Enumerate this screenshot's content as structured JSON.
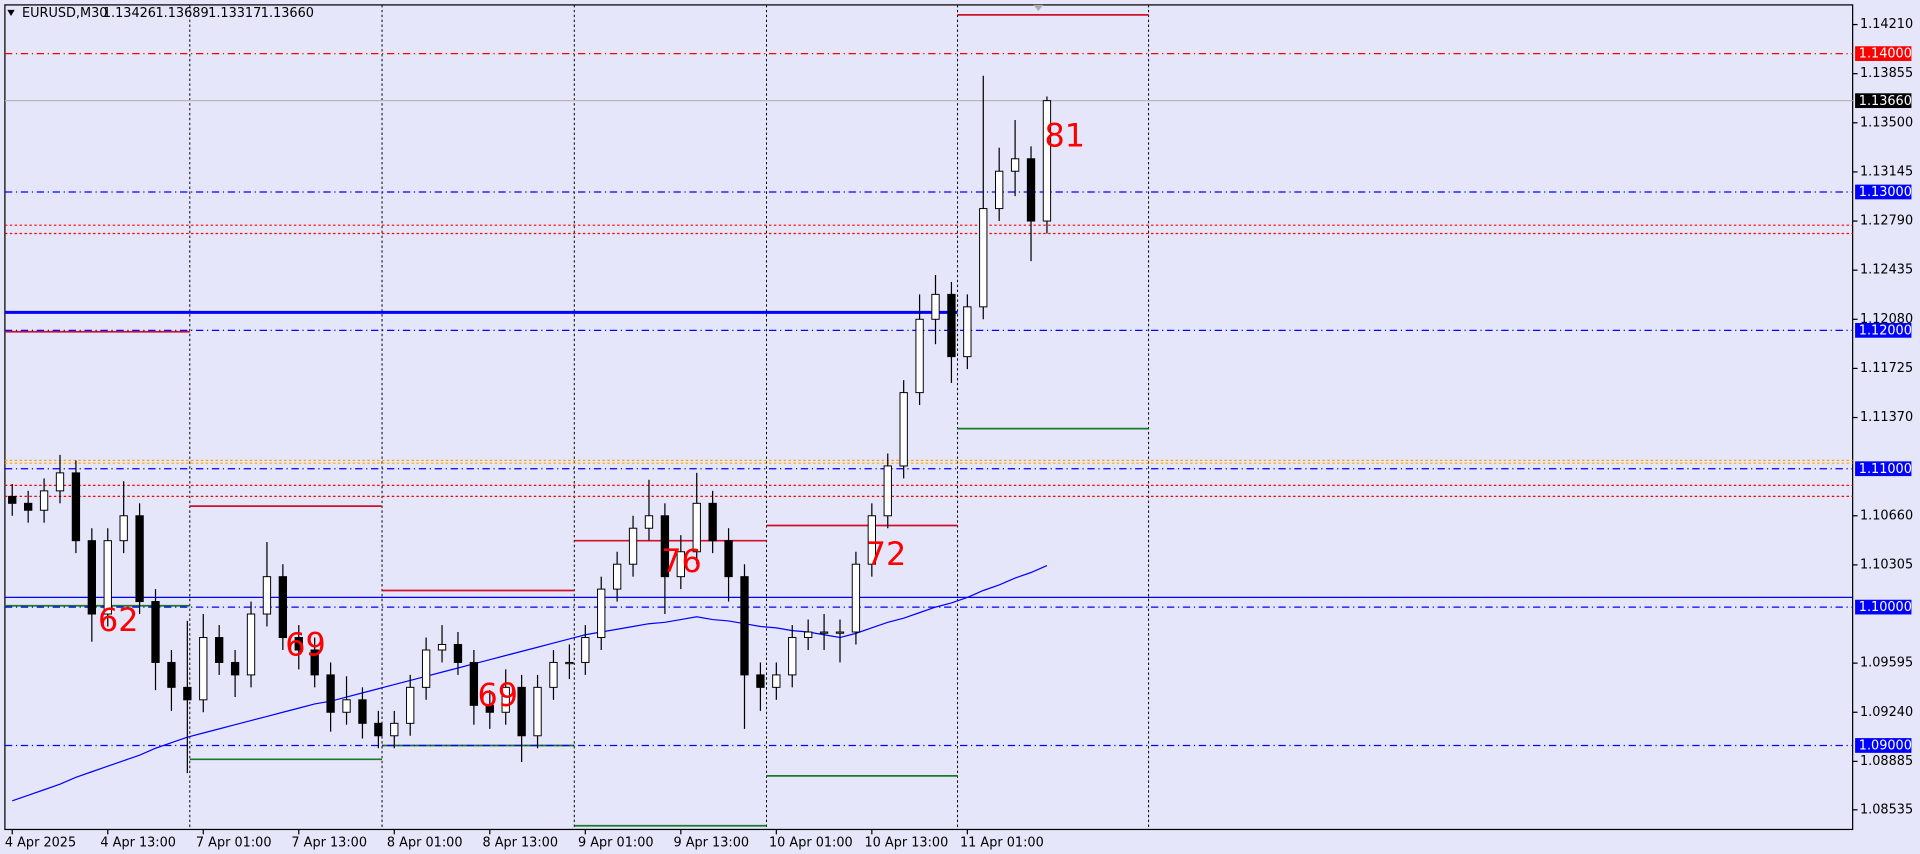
{
  "chart_data": {
    "type": "candlestick",
    "header": {
      "symbol": "EURUSD,M30",
      "quote": [
        "1.13426",
        "1.13689",
        "1.13317",
        "1.13660"
      ]
    },
    "categories": [
      "4 Apr 2025",
      null,
      null,
      null,
      null,
      null,
      "4 Apr 13:00",
      null,
      null,
      null,
      null,
      null,
      "7 Apr 01:00",
      null,
      null,
      null,
      null,
      null,
      "7 Apr 13:00",
      null,
      null,
      null,
      null,
      null,
      "8 Apr 01:00",
      null,
      null,
      null,
      null,
      null,
      "8 Apr 13:00",
      null,
      null,
      null,
      null,
      null,
      "9 Apr 01:00",
      null,
      null,
      null,
      null,
      null,
      "9 Apr 13:00",
      null,
      null,
      null,
      null,
      null,
      "10 Apr 01:00",
      null,
      null,
      null,
      null,
      null,
      "10 Apr 13:00",
      null,
      null,
      null,
      null,
      null,
      "11 Apr 01:00",
      null,
      null,
      null,
      null,
      null
    ],
    "candles": {
      "open": [
        1.108,
        1.1075,
        1.107,
        1.1084,
        1.1097,
        1.1048,
        1.0995,
        1.1048,
        1.1066,
        1.1004,
        1.096,
        1.0942,
        1.0933,
        1.0978,
        1.096,
        1.0951,
        1.0995,
        1.1022,
        1.0978,
        1.0969,
        1.0951,
        1.0924,
        1.0933,
        1.0916,
        1.0907,
        1.0916,
        1.0942,
        1.0969,
        1.0973,
        1.096,
        1.0929,
        1.0924,
        1.0942,
        1.0907,
        1.0942,
        1.096,
        1.096,
        1.0978,
        1.1013,
        1.1031,
        1.1057,
        1.1066,
        1.1022,
        1.104,
        1.1075,
        1.1048,
        1.1022,
        1.0951,
        1.0942,
        1.0951,
        1.0978,
        1.0982,
        1.0982,
        1.0982,
        1.1031,
        1.1066,
        1.1102,
        1.1155,
        1.1208,
        1.1226,
        1.1181,
        1.1217,
        1.1288,
        1.1315,
        1.1324,
        1.1279
      ],
      "high": [
        1.1089,
        1.1084,
        1.1093,
        1.111,
        1.1106,
        1.1057,
        1.1057,
        1.1091,
        1.1075,
        1.1013,
        1.0969,
        1.099,
        1.0995,
        1.0987,
        1.0969,
        1.1004,
        1.1047,
        1.1031,
        1.0987,
        1.0978,
        1.096,
        1.095,
        1.0942,
        1.0925,
        1.0925,
        1.0951,
        1.0978,
        1.0987,
        1.0982,
        1.0969,
        1.094,
        1.0955,
        1.0951,
        1.0951,
        1.0969,
        1.0973,
        1.0987,
        1.1022,
        1.104,
        1.1066,
        1.1092,
        1.1075,
        1.1052,
        1.1097,
        1.1084,
        1.1057,
        1.1031,
        1.096,
        1.096,
        1.0987,
        1.0991,
        1.0995,
        1.0991,
        1.104,
        1.1075,
        1.1111,
        1.1164,
        1.1226,
        1.124,
        1.1235,
        1.1226,
        1.1384,
        1.1332,
        1.1352,
        1.1333,
        1.1369
      ],
      "low": [
        1.1066,
        1.1061,
        1.1061,
        1.1075,
        1.1039,
        1.0975,
        1.0986,
        1.1039,
        1.0995,
        1.094,
        1.0925,
        1.088,
        1.0924,
        1.0951,
        1.0935,
        1.0942,
        1.0986,
        1.0969,
        1.0955,
        1.0942,
        1.091,
        1.0915,
        1.0905,
        1.0898,
        1.0898,
        1.0907,
        1.0933,
        1.096,
        1.0951,
        1.0915,
        1.0912,
        1.0915,
        1.0888,
        1.0898,
        1.0933,
        1.0948,
        1.0951,
        1.0969,
        1.1004,
        1.1022,
        1.1048,
        1.0995,
        1.1013,
        1.1031,
        1.1039,
        1.1004,
        1.0912,
        1.0925,
        1.0933,
        1.0942,
        1.0969,
        1.0969,
        1.096,
        1.0973,
        1.1022,
        1.1057,
        1.1093,
        1.1146,
        1.119,
        1.1162,
        1.1172,
        1.1208,
        1.1279,
        1.1297,
        1.125,
        1.127
      ],
      "close": [
        1.1075,
        1.107,
        1.1084,
        1.1097,
        1.1048,
        1.0995,
        1.1048,
        1.1066,
        1.1004,
        1.096,
        1.0942,
        1.0933,
        1.0978,
        1.096,
        1.0951,
        1.0995,
        1.1022,
        1.0978,
        1.0969,
        1.0951,
        1.0924,
        1.0933,
        1.0916,
        1.0907,
        1.0916,
        1.0942,
        1.0969,
        1.0973,
        1.096,
        1.0929,
        1.0924,
        1.0942,
        1.0907,
        1.0942,
        1.096,
        1.096,
        1.0978,
        1.1013,
        1.1031,
        1.1057,
        1.1066,
        1.1022,
        1.104,
        1.1075,
        1.1048,
        1.1022,
        1.0951,
        1.0942,
        1.0951,
        1.0978,
        1.0982,
        1.0982,
        1.0982,
        1.1031,
        1.1066,
        1.1102,
        1.1155,
        1.1208,
        1.1226,
        1.1181,
        1.1217,
        1.1288,
        1.1315,
        1.1324,
        1.1279,
        1.1366
      ]
    },
    "ma": {
      "color": "#0000ff",
      "values": [
        1.086,
        1.0864,
        1.0868,
        1.0872,
        1.0877,
        1.0881,
        1.0885,
        1.0889,
        1.0893,
        1.0898,
        1.0902,
        1.0906,
        1.0909,
        1.0912,
        1.0915,
        1.0918,
        1.0921,
        1.0924,
        1.0927,
        1.093,
        1.0932,
        1.0935,
        1.0938,
        1.0941,
        1.0944,
        1.0947,
        1.095,
        1.0953,
        1.0956,
        1.0959,
        1.0962,
        1.0965,
        1.0968,
        1.0971,
        1.0974,
        1.0977,
        1.098,
        1.0982,
        1.0984,
        1.0986,
        1.0988,
        1.0989,
        1.0991,
        1.0993,
        1.0991,
        1.099,
        1.0988,
        1.0986,
        1.0985,
        1.0983,
        1.0982,
        1.098,
        1.0978,
        1.0981,
        1.0985,
        1.0989,
        1.0992,
        1.0996,
        1.1,
        1.1003,
        1.1007,
        1.1012,
        1.1016,
        1.1021,
        1.1025,
        1.103
      ]
    },
    "ylim": [
      1.08393,
      1.14352
    ],
    "yticks": [
      {
        "value": 1.1421,
        "label": "1.14210"
      },
      1.13855,
      {
        "value": 1.135,
        "label": "1.13500"
      },
      1.13145,
      {
        "value": 1.1279,
        "label": "1.12790"
      },
      1.12435,
      {
        "value": 1.1208,
        "label": "1.12080"
      },
      1.11725,
      {
        "value": 1.1137,
        "label": "1.11370"
      },
      {
        "value": 1.1066,
        "label": "1.10660"
      },
      1.10305,
      1.09595,
      {
        "value": 1.0924,
        "label": "1.09240"
      },
      1.08885,
      1.08535
    ],
    "levels": [
      {
        "value": 1.14,
        "label": "1.14000",
        "color": "#ff0000",
        "style": "dashdot"
      },
      {
        "value": 1.1366,
        "label": "1.13660",
        "color": "#000000",
        "style": "current"
      },
      {
        "value": 1.13,
        "label": "1.13000",
        "color": "#0000ff",
        "style": "dashdot"
      },
      {
        "value": 1.12,
        "label": "1.12000",
        "color": "#0000ff",
        "style": "dashdot"
      },
      {
        "value": 1.11,
        "label": "1.11000",
        "color": "#0000ff",
        "style": "dashdot"
      },
      {
        "value": 1.1,
        "label": "1.10000",
        "color": "#0000ff",
        "style": "dashdot"
      },
      {
        "value": 1.09,
        "label": "1.09000",
        "color": "#0000ff",
        "style": "dashdot"
      }
    ],
    "hlines": [
      {
        "value": 1.1213,
        "color": "#0000ff",
        "style": "thick"
      },
      {
        "value": 1.1007,
        "color": "#0000ff",
        "style": "solid"
      },
      {
        "value": 1.1106,
        "color": "#ffa500",
        "style": "dotted"
      },
      {
        "value": 1.1104,
        "color": "#ffa500",
        "style": "dotted"
      },
      {
        "value": 1.1276,
        "color": "#ff0000",
        "style": "dotted"
      },
      {
        "value": 1.127,
        "color": "#ff0000",
        "style": "dotted"
      },
      {
        "value": 1.1088,
        "color": "#ff0000",
        "style": "dotted"
      },
      {
        "value": 1.108,
        "color": "#ff0000",
        "style": "dotted"
      }
    ],
    "day_ranges": [
      {
        "high": 1.1199,
        "low": 1.1001
      },
      {
        "high": 1.1073,
        "low": 1.089
      },
      {
        "high": 1.1012,
        "low": 1.09
      },
      {
        "high": 1.1048,
        "low": 1.0842
      },
      {
        "high": 1.1059,
        "low": 1.0878
      },
      {
        "high": 1.1428,
        "low": 1.1129
      }
    ],
    "annotations": [
      62,
      69,
      69,
      76,
      72,
      81
    ]
  }
}
